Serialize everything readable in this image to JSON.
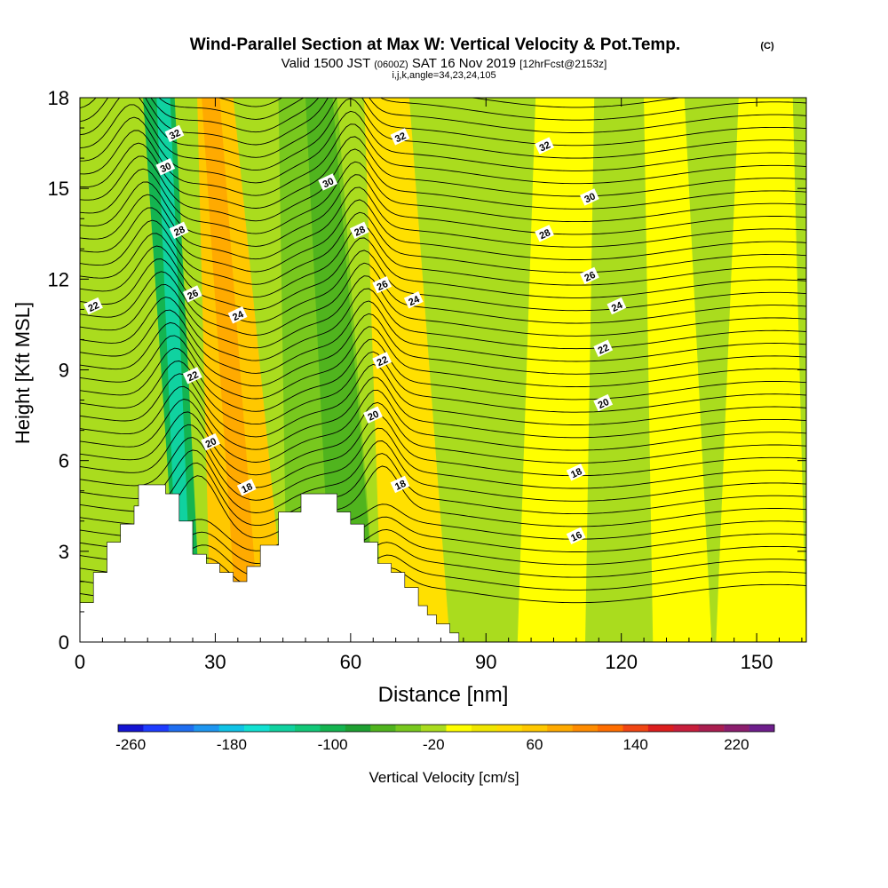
{
  "chart_data": {
    "type": "heatmap",
    "title": "Wind-Parallel Section at Max W: Vertical Velocity & Pot.Temp.",
    "title_suffix": "(C)",
    "subtitle_parts": {
      "a": "Valid 1500 JST",
      "b": "(0600Z)",
      "c": "SAT 16 Nov 2019",
      "d": "[12hrFcst@2153z]"
    },
    "subtitle2": "i,j,k,angle=34,23,24,105",
    "xlabel": "Distance [nm]",
    "ylabel": "Height [Kft MSL]",
    "xlim": [
      0,
      161
    ],
    "ylim": [
      0,
      18
    ],
    "x_ticks": [
      0,
      30,
      60,
      90,
      120,
      150
    ],
    "y_ticks": [
      0,
      3,
      6,
      9,
      12,
      15,
      18
    ],
    "colorbar": {
      "label": "Vertical Velocity [cm/s]",
      "tick_labels": [
        "-260",
        "-180",
        "-100",
        "-20",
        "60",
        "140",
        "220"
      ],
      "colors": [
        "#1414d2",
        "#1e3cff",
        "#1f6ef0",
        "#1e96f0",
        "#10c3e6",
        "#12e1d2",
        "#10d2a0",
        "#12c878",
        "#14b450",
        "#1ea032",
        "#50b41e",
        "#78c81e",
        "#aadc1e",
        "#ffff00",
        "#f0e600",
        "#ffdc00",
        "#ffc800",
        "#ffaa00",
        "#ff8c00",
        "#ff6e00",
        "#f04614",
        "#dc1e1e",
        "#c81e3c",
        "#aa1e50",
        "#8c1e6e",
        "#6e1e8c"
      ]
    },
    "terrain": [
      [
        0,
        1.3
      ],
      [
        3,
        1.3
      ],
      [
        3,
        2.3
      ],
      [
        6,
        2.3
      ],
      [
        6,
        3.3
      ],
      [
        9,
        3.3
      ],
      [
        9,
        3.9
      ],
      [
        12,
        3.9
      ],
      [
        12,
        4.5
      ],
      [
        13,
        4.5
      ],
      [
        13,
        5.2
      ],
      [
        19,
        5.2
      ],
      [
        19,
        4.9
      ],
      [
        22,
        4.9
      ],
      [
        22,
        4.0
      ],
      [
        25,
        4.0
      ],
      [
        25,
        2.9
      ],
      [
        28,
        2.9
      ],
      [
        28,
        2.6
      ],
      [
        31,
        2.6
      ],
      [
        31,
        2.3
      ],
      [
        34,
        2.3
      ],
      [
        34,
        2.0
      ],
      [
        37,
        2.0
      ],
      [
        37,
        2.5
      ],
      [
        40,
        2.5
      ],
      [
        40,
        3.2
      ],
      [
        44,
        3.2
      ],
      [
        44,
        4.3
      ],
      [
        49,
        4.3
      ],
      [
        49,
        4.9
      ],
      [
        57,
        4.9
      ],
      [
        57,
        4.3
      ],
      [
        60,
        4.3
      ],
      [
        60,
        3.9
      ],
      [
        63,
        3.9
      ],
      [
        63,
        3.3
      ],
      [
        66,
        3.3
      ],
      [
        66,
        2.6
      ],
      [
        69,
        2.6
      ],
      [
        69,
        2.3
      ],
      [
        72,
        2.3
      ],
      [
        72,
        1.8
      ],
      [
        75,
        1.8
      ],
      [
        75,
        1.2
      ],
      [
        77,
        1.2
      ],
      [
        77,
        0.9
      ],
      [
        79,
        0.9
      ],
      [
        79,
        0.6
      ],
      [
        82,
        0.6
      ],
      [
        82,
        0.3
      ],
      [
        84,
        0.3
      ],
      [
        84,
        0
      ],
      [
        0,
        0
      ]
    ],
    "velocity_bands": [
      {
        "x0_bottom": 22,
        "x1_bottom": 27,
        "x0_top": 14,
        "x1_top": 21,
        "value": -120,
        "color": "#14b450"
      },
      {
        "x0_bottom": 22,
        "x1_bottom": 25,
        "x0_top": 17,
        "x1_top": 20,
        "value": -170,
        "color": "#10d2a0"
      },
      {
        "x0_bottom": 29,
        "x1_bottom": 46,
        "x0_top": 26,
        "x1_top": 34,
        "value": 90,
        "color": "#ffc800"
      },
      {
        "x0_bottom": 35,
        "x1_bottom": 40,
        "x0_top": 27,
        "x1_top": 31,
        "value": 130,
        "color": "#ffaa00"
      },
      {
        "x0_bottom": 46,
        "x1_bottom": 66,
        "x0_top": 44,
        "x1_top": 57,
        "value": -60,
        "color": "#78c81e"
      },
      {
        "x0_bottom": 56,
        "x1_bottom": 66,
        "x0_top": 50,
        "x1_top": 56,
        "value": -90,
        "color": "#50b41e"
      },
      {
        "x0_bottom": 67,
        "x1_bottom": 82,
        "x0_top": 63,
        "x1_top": 73,
        "value": 40,
        "color": "#ffe000"
      },
      {
        "x0_bottom": 97,
        "x1_bottom": 112,
        "x0_top": 101,
        "x1_top": 114,
        "value": 10,
        "color": "#ffff00"
      },
      {
        "x0_bottom": 127,
        "x1_bottom": 140,
        "x0_top": 125,
        "x1_top": 134,
        "value": 10,
        "color": "#ffff00"
      },
      {
        "x0_bottom": 141,
        "x1_bottom": 161,
        "x0_top": 146,
        "x1_top": 158,
        "value": 10,
        "color": "#ffff00"
      }
    ],
    "contour_labels": [
      {
        "text": "32",
        "x": 21,
        "y": 16.8
      },
      {
        "text": "30",
        "x": 19,
        "y": 15.7
      },
      {
        "text": "28",
        "x": 22,
        "y": 13.6
      },
      {
        "text": "26",
        "x": 25,
        "y": 11.5
      },
      {
        "text": "24",
        "x": 35,
        "y": 10.8
      },
      {
        "text": "22",
        "x": 25,
        "y": 8.8
      },
      {
        "text": "20",
        "x": 29,
        "y": 6.6
      },
      {
        "text": "18",
        "x": 37,
        "y": 5.1
      },
      {
        "text": "22",
        "x": 3,
        "y": 11.1
      },
      {
        "text": "30",
        "x": 55,
        "y": 15.2
      },
      {
        "text": "28",
        "x": 62,
        "y": 13.6
      },
      {
        "text": "26",
        "x": 67,
        "y": 11.8
      },
      {
        "text": "24",
        "x": 74,
        "y": 11.3
      },
      {
        "text": "22",
        "x": 67,
        "y": 9.3
      },
      {
        "text": "20",
        "x": 65,
        "y": 7.5
      },
      {
        "text": "18",
        "x": 71,
        "y": 5.2
      },
      {
        "text": "32",
        "x": 71,
        "y": 16.7
      },
      {
        "text": "32",
        "x": 103,
        "y": 16.4
      },
      {
        "text": "30",
        "x": 113,
        "y": 14.7
      },
      {
        "text": "28",
        "x": 103,
        "y": 13.5
      },
      {
        "text": "26",
        "x": 113,
        "y": 12.1
      },
      {
        "text": "24",
        "x": 119,
        "y": 11.1
      },
      {
        "text": "22",
        "x": 116,
        "y": 9.7
      },
      {
        "text": "20",
        "x": 116,
        "y": 7.9
      },
      {
        "text": "18",
        "x": 110,
        "y": 5.6
      },
      {
        "text": "16",
        "x": 110,
        "y": 3.5
      }
    ]
  }
}
